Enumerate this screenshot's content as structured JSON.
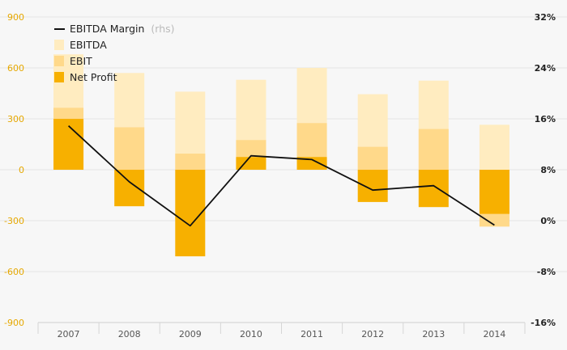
{
  "colors": {
    "ebitda": "#ffecc0",
    "ebit": "#ffd98a",
    "net_profit": "#f7b000",
    "margin_line": "#111111",
    "grid": "#e4e4e4",
    "left_axis_text": "#e6a800",
    "right_axis_text": "#222222",
    "background": "#f7f7f7"
  },
  "legend": {
    "margin_label": "EBITDA Margin",
    "margin_suffix": "(rhs)",
    "ebitda_label": "EBITDA",
    "ebit_label": "EBIT",
    "net_profit_label": "Net Profit"
  },
  "chart_data": {
    "type": "bar",
    "categories": [
      "2007",
      "2008",
      "2009",
      "2010",
      "2011",
      "2012",
      "2013",
      "2014"
    ],
    "series": [
      {
        "name": "EBITDA",
        "type": "bar",
        "axis": "left",
        "values": [
          680,
          570,
          460,
          530,
          600,
          445,
          525,
          265
        ]
      },
      {
        "name": "EBIT",
        "type": "bar",
        "axis": "left",
        "values": [
          365,
          250,
          95,
          175,
          275,
          135,
          240,
          -335
        ]
      },
      {
        "name": "Net Profit",
        "type": "bar",
        "axis": "left",
        "values": [
          300,
          -215,
          -510,
          75,
          75,
          -190,
          -220,
          -260
        ]
      },
      {
        "name": "EBITDA Margin",
        "type": "line",
        "axis": "right",
        "values": [
          14.9,
          6.1,
          -0.8,
          10.2,
          9.6,
          4.8,
          5.5,
          -0.7
        ]
      }
    ],
    "left_axis": {
      "ticks": [
        "900",
        "600",
        "300",
        "0",
        "-300",
        "-600",
        "-900"
      ],
      "ylim": [
        -900,
        900
      ]
    },
    "right_axis": {
      "ticks": [
        "32%",
        "24%",
        "16%",
        "8%",
        "0%",
        "-8%",
        "-16%"
      ],
      "ylim": [
        -16,
        32
      ]
    },
    "grid": true,
    "legend_position": "top-left"
  }
}
